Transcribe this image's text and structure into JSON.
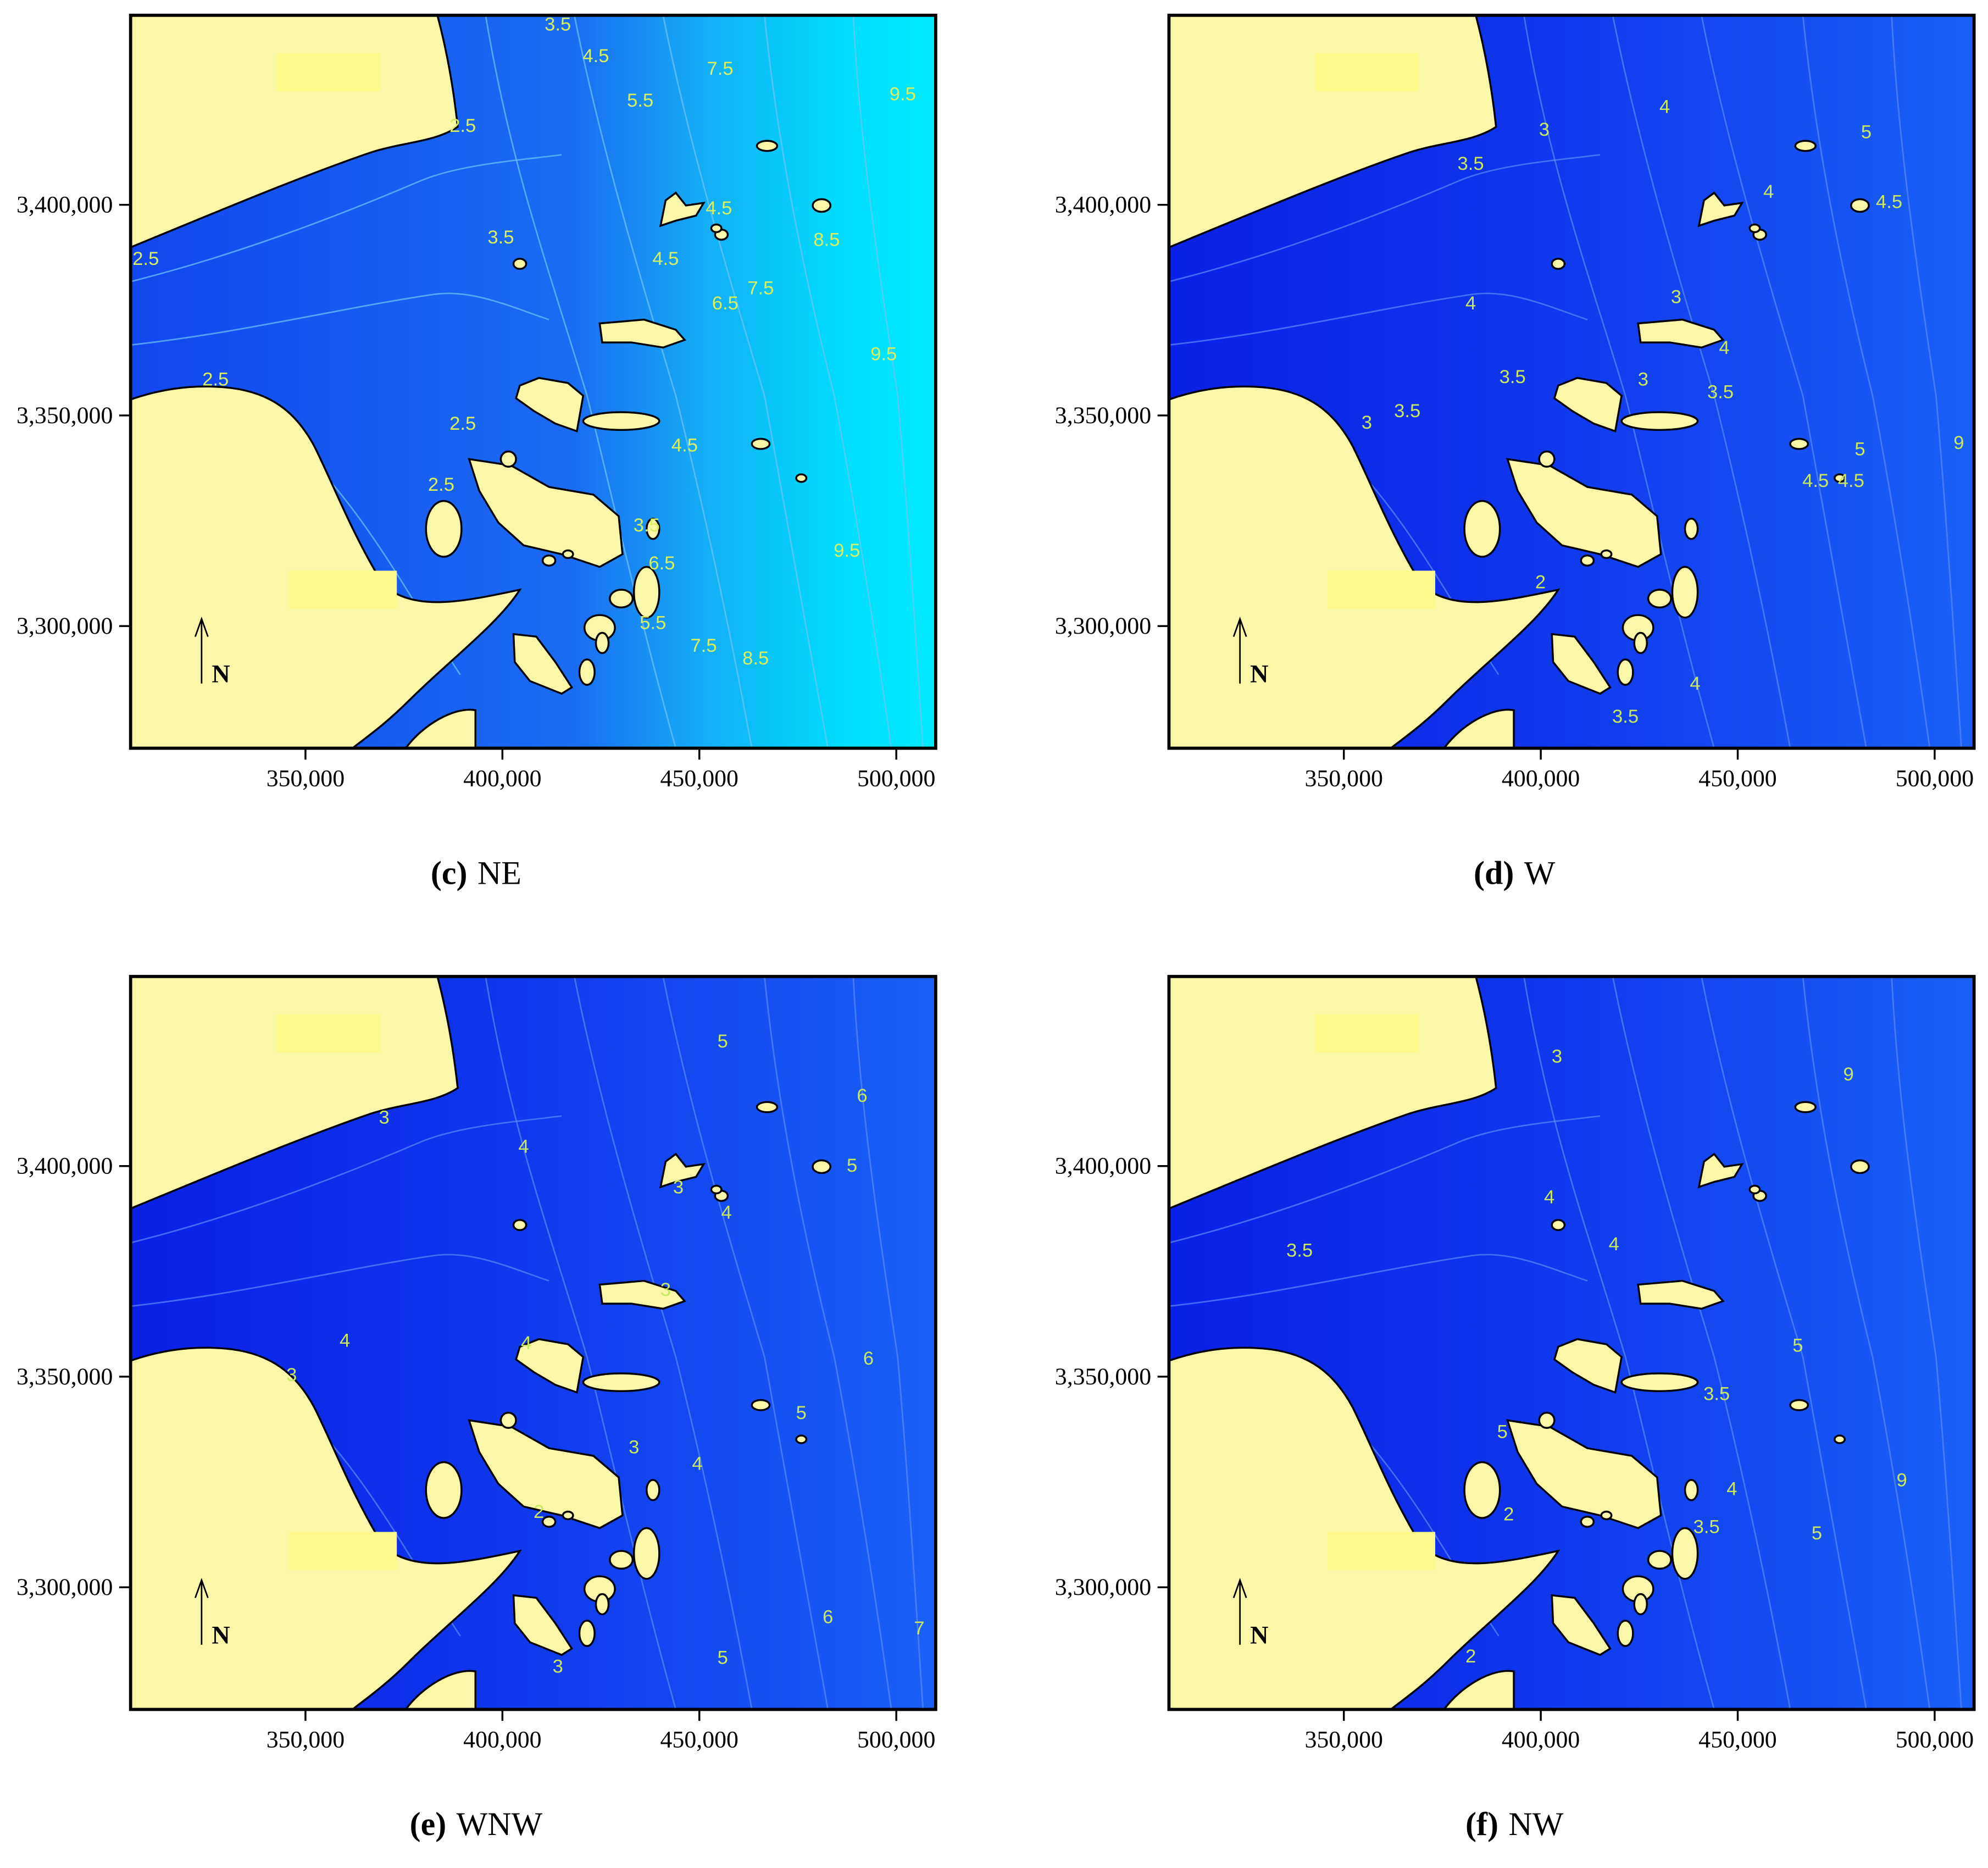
{
  "axes": {
    "xlim": [
      305600,
      510000
    ],
    "ylim": [
      3271000,
      3445000
    ],
    "xticks": [
      {
        "value": 350000,
        "label": "350,000"
      },
      {
        "value": 400000,
        "label": "400,000"
      },
      {
        "value": 450000,
        "label": "450,000"
      },
      {
        "value": 500000,
        "label": "500,000"
      }
    ],
    "yticks": [
      {
        "value": 3300000,
        "label": "3,300,000"
      },
      {
        "value": 3350000,
        "label": "3,350,000"
      },
      {
        "value": 3400000,
        "label": "3,400,000"
      }
    ]
  },
  "north": "N",
  "panels": [
    {
      "caption": {
        "letter": "(c)",
        "name": "NE"
      },
      "style": "ne",
      "contour_labels": [
        "3.5",
        "4.5",
        "5.5",
        "7.5",
        "9.5",
        "2.5",
        "4.5",
        "3.5",
        "4.5",
        "8.5",
        "6.5",
        "7.5",
        "9.5",
        "2.5",
        "2.5",
        "4.5",
        "2.5",
        "3.5",
        "6.5",
        "9.5",
        "5.5",
        "7.5",
        "8.5",
        "2.5"
      ]
    },
    {
      "caption": {
        "letter": "(d)",
        "name": "W"
      },
      "style": "w",
      "contour_labels": [
        "3",
        "4",
        "5",
        "3.5",
        "4",
        "4.5",
        "4",
        "3",
        "4",
        "3.5",
        "3",
        "3.5",
        "3.5",
        "3",
        "9",
        "5",
        "4.5",
        "4.5",
        "2",
        "4",
        "3.5"
      ]
    },
    {
      "caption": {
        "letter": "(e)",
        "name": "WNW"
      },
      "style": "w",
      "contour_labels": [
        "5",
        "6",
        "3",
        "4",
        "5",
        "3",
        "4",
        "3",
        "4",
        "4",
        "3",
        "6",
        "5",
        "3",
        "4",
        "2",
        "6",
        "7",
        "3",
        "5"
      ]
    },
    {
      "caption": {
        "letter": "(f)",
        "name": "NW"
      },
      "style": "w",
      "contour_labels": [
        "3",
        "9",
        "4",
        "3.5",
        "4",
        "5",
        "3.5",
        "5",
        "4",
        "9",
        "2",
        "3.5",
        "5",
        "2"
      ]
    }
  ]
}
